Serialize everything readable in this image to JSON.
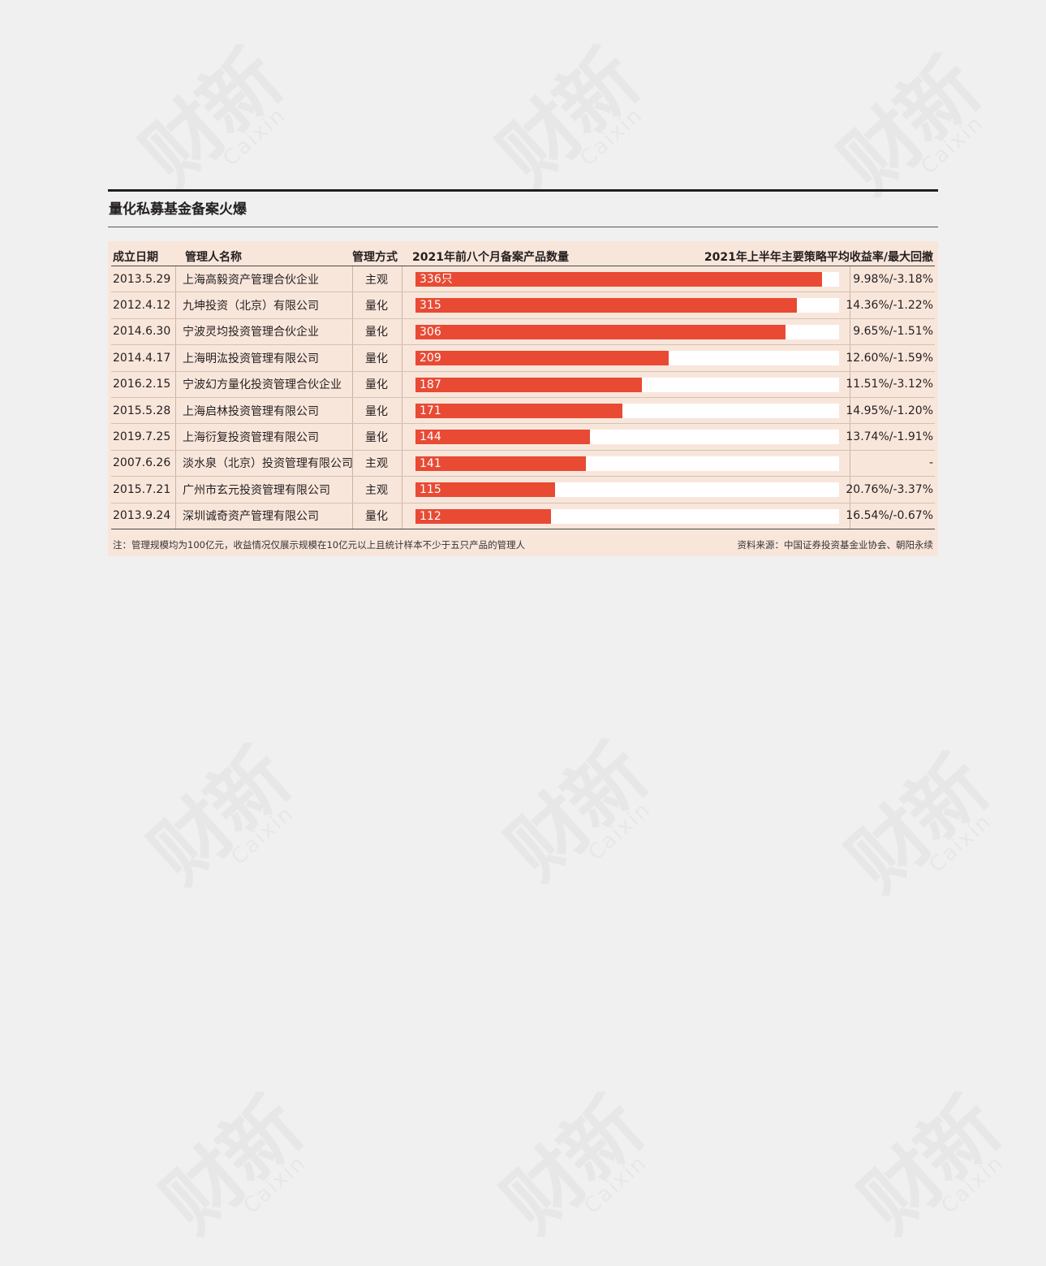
{
  "watermark": {
    "cn": "财新",
    "en": "Caixin"
  },
  "chart_data": {
    "type": "table",
    "title": "量化私募基金备案火爆",
    "columns": [
      "成立日期",
      "管理人名称",
      "管理方式",
      "2021年前八个月备案产品数量",
      "2021年上半年主要策略平均收益率/最大回撤"
    ],
    "bar_max": 350,
    "bar_color": "#e84a34",
    "rows": [
      {
        "date": "2013.5.29",
        "name": "上海高毅资产管理合伙企业",
        "mode": "主观",
        "count": 336,
        "count_label": "336只",
        "ret": "9.98%/-3.18%"
      },
      {
        "date": "2012.4.12",
        "name": "九坤投资（北京）有限公司",
        "mode": "量化",
        "count": 315,
        "count_label": "315",
        "ret": "14.36%/-1.22%"
      },
      {
        "date": "2014.6.30",
        "name": "宁波灵均投资管理合伙企业",
        "mode": "量化",
        "count": 306,
        "count_label": "306",
        "ret": "9.65%/-1.51%"
      },
      {
        "date": "2014.4.17",
        "name": "上海明汯投资管理有限公司",
        "mode": "量化",
        "count": 209,
        "count_label": "209",
        "ret": "12.60%/-1.59%"
      },
      {
        "date": "2016.2.15",
        "name": "宁波幻方量化投资管理合伙企业",
        "mode": "量化",
        "count": 187,
        "count_label": "187",
        "ret": "11.51%/-3.12%"
      },
      {
        "date": "2015.5.28",
        "name": "上海启林投资管理有限公司",
        "mode": "量化",
        "count": 171,
        "count_label": "171",
        "ret": "14.95%/-1.20%"
      },
      {
        "date": "2019.7.25",
        "name": "上海衍复投资管理有限公司",
        "mode": "量化",
        "count": 144,
        "count_label": "144",
        "ret": "13.74%/-1.91%"
      },
      {
        "date": "2007.6.26",
        "name": "淡水泉（北京）投资管理有限公司",
        "mode": "主观",
        "count": 141,
        "count_label": "141",
        "ret": "-"
      },
      {
        "date": "2015.7.21",
        "name": "广州市玄元投资管理有限公司",
        "mode": "主观",
        "count": 115,
        "count_label": "115",
        "ret": "20.76%/-3.37%"
      },
      {
        "date": "2013.9.24",
        "name": "深圳诚奇资产管理有限公司",
        "mode": "量化",
        "count": 112,
        "count_label": "112",
        "ret": "16.54%/-0.67%"
      }
    ],
    "note": "注：管理规模均为100亿元，收益情况仅展示规模在10亿元以上且统计样本不少于五只产品的管理人",
    "source": "资料来源：中国证券投资基金业协会、朝阳永续"
  }
}
